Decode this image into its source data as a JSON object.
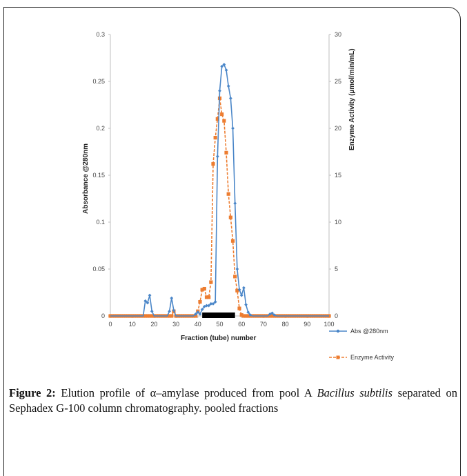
{
  "figure": {
    "label": "Figure 2:",
    "text_1": " Elution profile of α–amylase produced from pool A ",
    "species": "Bacillus subtilis",
    "text_2": " separated on Sephadex G-100 column chromatography. pooled fractions"
  },
  "colors": {
    "abs": "#4a86c8",
    "enzyme": "#ed7d31",
    "pooled_bar": "#000000"
  },
  "chart_data": {
    "type": "line",
    "xlabel": "Fraction (tube) number",
    "ylabel_left": "Absorbance @280nm",
    "ylabel_right": "Enzyme Activity (µmol/min/mL)",
    "xlim": [
      0,
      100
    ],
    "ylim_left": [
      0,
      0.3
    ],
    "ylim_right": [
      0,
      30
    ],
    "x_ticks": [
      "0",
      "10",
      "20",
      "30",
      "40",
      "50",
      "60",
      "70",
      "80",
      "90",
      "100"
    ],
    "y_left_ticks": [
      "0",
      "0.05",
      "0.1",
      "0.15",
      "0.2",
      "0.25",
      "0.3"
    ],
    "y_right_ticks": [
      "0",
      "5",
      "10",
      "15",
      "20",
      "25",
      "30"
    ],
    "grid": false,
    "legend_position": "bottom-right",
    "pooled_fractions": [
      42,
      57
    ],
    "series": [
      {
        "name": "Abs @280nm",
        "axis": "left",
        "x": [
          0,
          1,
          2,
          3,
          4,
          5,
          6,
          7,
          8,
          9,
          10,
          11,
          12,
          13,
          14,
          15,
          16,
          17,
          18,
          19,
          20,
          21,
          22,
          23,
          24,
          25,
          26,
          27,
          28,
          29,
          30,
          31,
          32,
          33,
          34,
          35,
          36,
          37,
          38,
          39,
          40,
          41,
          42,
          43,
          44,
          45,
          46,
          47,
          48,
          49,
          50,
          51,
          52,
          53,
          54,
          55,
          56,
          57,
          58,
          59,
          60,
          61,
          62,
          63,
          64,
          65,
          66,
          67,
          68,
          69,
          70,
          71,
          72,
          73,
          74,
          75,
          76,
          77,
          78,
          79,
          80,
          81,
          82,
          83,
          84,
          85,
          86,
          87,
          88,
          89,
          90,
          91,
          92,
          93,
          94,
          95,
          96,
          97,
          98,
          99,
          100
        ],
        "values": [
          0,
          0,
          0,
          0,
          0,
          0,
          0,
          0,
          0,
          0,
          0,
          0,
          0,
          0,
          0,
          0,
          0.016,
          0.014,
          0.022,
          0.005,
          0,
          0,
          0,
          0,
          0,
          0,
          0,
          0.005,
          0.019,
          0.006,
          0,
          0,
          0,
          0,
          0,
          0,
          0,
          0,
          0,
          0.002,
          0.004,
          0.002,
          0.007,
          0.01,
          0.011,
          0.011,
          0.013,
          0.013,
          0.015,
          0.17,
          0.24,
          0.266,
          0.268,
          0.262,
          0.245,
          0.232,
          0.2,
          0.12,
          0.05,
          0.028,
          0.022,
          0.03,
          0.012,
          0.004,
          0.001,
          0,
          0,
          0,
          0,
          0,
          0,
          0,
          0,
          0.002,
          0.003,
          0.001,
          0,
          0,
          0,
          0,
          0,
          0,
          0,
          0,
          0,
          0,
          0,
          0,
          0,
          0,
          0,
          0,
          0,
          0,
          0,
          0,
          0,
          0,
          0,
          0,
          0
        ]
      },
      {
        "name": "Enzyme Activity",
        "axis": "right",
        "x": [
          0,
          1,
          2,
          3,
          4,
          5,
          6,
          7,
          8,
          9,
          10,
          11,
          12,
          13,
          14,
          15,
          16,
          17,
          18,
          19,
          20,
          21,
          22,
          23,
          24,
          25,
          26,
          27,
          28,
          29,
          30,
          31,
          32,
          33,
          34,
          35,
          36,
          37,
          38,
          39,
          40,
          41,
          42,
          43,
          44,
          45,
          46,
          47,
          48,
          49,
          50,
          51,
          52,
          53,
          54,
          55,
          56,
          57,
          58,
          59,
          60,
          61,
          62,
          63,
          64,
          65,
          66,
          67,
          68,
          69,
          70,
          71,
          72,
          73,
          74,
          75,
          76,
          77,
          78,
          79,
          80,
          81,
          82,
          83,
          84,
          85,
          86,
          87,
          88,
          89,
          90,
          91,
          92,
          93,
          94,
          95,
          96,
          97,
          98,
          99,
          100
        ],
        "values": [
          0,
          0,
          0,
          0,
          0,
          0,
          0,
          0,
          0,
          0,
          0,
          0,
          0,
          0,
          0,
          0,
          0,
          0,
          0,
          0,
          0,
          0,
          0,
          0,
          0,
          0,
          0,
          0,
          0,
          0.5,
          0,
          0,
          0,
          0,
          0,
          0,
          0,
          0,
          0,
          0,
          0.5,
          1.5,
          2.8,
          2.9,
          2.0,
          2.0,
          3.6,
          16.2,
          19.0,
          21.0,
          23.2,
          21.5,
          20.8,
          17.4,
          13.0,
          10.5,
          8.0,
          4.2,
          2.7,
          0.8,
          0.1,
          0,
          0,
          0,
          0,
          0,
          0,
          0,
          0,
          0,
          0,
          0,
          0,
          0,
          0,
          0,
          0,
          0,
          0,
          0,
          0,
          0,
          0,
          0,
          0,
          0,
          0,
          0,
          0,
          0,
          0,
          0,
          0,
          0,
          0,
          0,
          0,
          0,
          0,
          0,
          0
        ]
      }
    ]
  }
}
